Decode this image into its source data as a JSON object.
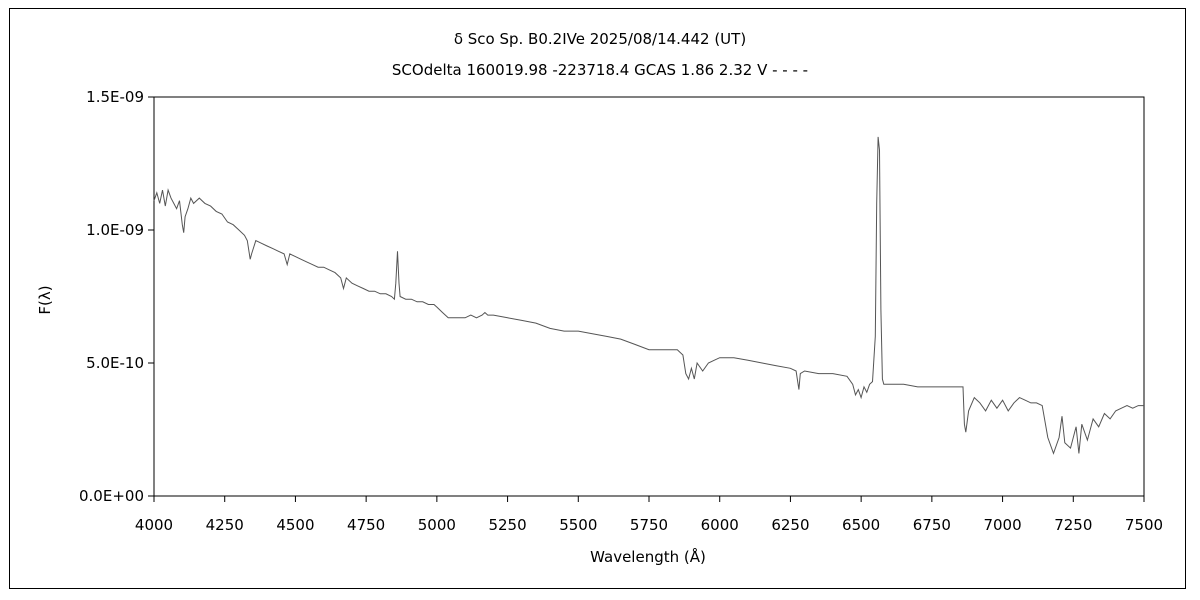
{
  "chart_data": {
    "type": "line",
    "title": "δ Sco    Sp. B0.2IVe    2025/08/14.442 (UT)",
    "subtitle": "SCOdelta 160019.98 -223718.4 GCAS 1.86 2.32 V - - - -",
    "xlabel": "Wavelength (Å)",
    "ylabel": "F(λ)",
    "xlim": [
      4000,
      7500
    ],
    "ylim": [
      0,
      1.5e-09
    ],
    "x_ticks": [
      "4000",
      "4250",
      "4500",
      "4750",
      "5000",
      "5250",
      "5500",
      "5750",
      "6000",
      "6250",
      "6500",
      "6750",
      "7000",
      "7250",
      "7500"
    ],
    "y_ticks": [
      "0.0E+00",
      "5.0E-10",
      "1.0E-09",
      "1.5E-09"
    ],
    "y_tick_values": [
      0,
      5e-10,
      1e-09,
      1.5e-09
    ],
    "x_tick_values": [
      4000,
      4250,
      4500,
      4750,
      5000,
      5250,
      5500,
      5750,
      6000,
      6250,
      6500,
      6750,
      7000,
      7250,
      7500
    ],
    "grid": false,
    "series": [
      {
        "color": "#555555",
        "points": [
          [
            4000,
            1.11e-09
          ],
          [
            4010,
            1.14e-09
          ],
          [
            4020,
            1.1e-09
          ],
          [
            4030,
            1.15e-09
          ],
          [
            4040,
            1.09e-09
          ],
          [
            4050,
            1.15e-09
          ],
          [
            4060,
            1.12e-09
          ],
          [
            4070,
            1.1e-09
          ],
          [
            4080,
            1.08e-09
          ],
          [
            4090,
            1.11e-09
          ],
          [
            4100,
            1.02e-09
          ],
          [
            4105,
            9.9e-10
          ],
          [
            4110,
            1.05e-09
          ],
          [
            4120,
            1.08e-09
          ],
          [
            4130,
            1.12e-09
          ],
          [
            4140,
            1.1e-09
          ],
          [
            4160,
            1.12e-09
          ],
          [
            4180,
            1.1e-09
          ],
          [
            4200,
            1.09e-09
          ],
          [
            4220,
            1.07e-09
          ],
          [
            4240,
            1.06e-09
          ],
          [
            4260,
            1.03e-09
          ],
          [
            4280,
            1.02e-09
          ],
          [
            4300,
            1e-09
          ],
          [
            4320,
            9.8e-10
          ],
          [
            4330,
            9.6e-10
          ],
          [
            4340,
            8.9e-10
          ],
          [
            4345,
            9.1e-10
          ],
          [
            4360,
            9.6e-10
          ],
          [
            4380,
            9.5e-10
          ],
          [
            4400,
            9.4e-10
          ],
          [
            4420,
            9.3e-10
          ],
          [
            4440,
            9.2e-10
          ],
          [
            4460,
            9.1e-10
          ],
          [
            4471,
            8.7e-10
          ],
          [
            4480,
            9.1e-10
          ],
          [
            4500,
            9e-10
          ],
          [
            4520,
            8.9e-10
          ],
          [
            4540,
            8.8e-10
          ],
          [
            4560,
            8.7e-10
          ],
          [
            4580,
            8.6e-10
          ],
          [
            4600,
            8.6e-10
          ],
          [
            4620,
            8.5e-10
          ],
          [
            4640,
            8.4e-10
          ],
          [
            4660,
            8.2e-10
          ],
          [
            4670,
            7.8e-10
          ],
          [
            4680,
            8.2e-10
          ],
          [
            4700,
            8e-10
          ],
          [
            4720,
            7.9e-10
          ],
          [
            4740,
            7.8e-10
          ],
          [
            4760,
            7.7e-10
          ],
          [
            4780,
            7.7e-10
          ],
          [
            4800,
            7.6e-10
          ],
          [
            4820,
            7.6e-10
          ],
          [
            4840,
            7.5e-10
          ],
          [
            4850,
            7.4e-10
          ],
          [
            4855,
            8e-10
          ],
          [
            4861,
            9.2e-10
          ],
          [
            4866,
            8e-10
          ],
          [
            4870,
            7.5e-10
          ],
          [
            4890,
            7.4e-10
          ],
          [
            4910,
            7.4e-10
          ],
          [
            4930,
            7.3e-10
          ],
          [
            4950,
            7.3e-10
          ],
          [
            4970,
            7.2e-10
          ],
          [
            4990,
            7.2e-10
          ],
          [
            5000,
            7.1e-10
          ],
          [
            5020,
            6.9e-10
          ],
          [
            5040,
            6.7e-10
          ],
          [
            5060,
            6.7e-10
          ],
          [
            5080,
            6.7e-10
          ],
          [
            5100,
            6.7e-10
          ],
          [
            5120,
            6.8e-10
          ],
          [
            5140,
            6.7e-10
          ],
          [
            5160,
            6.8e-10
          ],
          [
            5170,
            6.9e-10
          ],
          [
            5180,
            6.8e-10
          ],
          [
            5200,
            6.8e-10
          ],
          [
            5250,
            6.7e-10
          ],
          [
            5300,
            6.6e-10
          ],
          [
            5350,
            6.5e-10
          ],
          [
            5400,
            6.3e-10
          ],
          [
            5450,
            6.2e-10
          ],
          [
            5500,
            6.2e-10
          ],
          [
            5550,
            6.1e-10
          ],
          [
            5600,
            6e-10
          ],
          [
            5650,
            5.9e-10
          ],
          [
            5700,
            5.7e-10
          ],
          [
            5750,
            5.5e-10
          ],
          [
            5800,
            5.5e-10
          ],
          [
            5850,
            5.5e-10
          ],
          [
            5870,
            5.3e-10
          ],
          [
            5880,
            4.6e-10
          ],
          [
            5890,
            4.4e-10
          ],
          [
            5900,
            4.8e-10
          ],
          [
            5910,
            4.4e-10
          ],
          [
            5920,
            5e-10
          ],
          [
            5940,
            4.7e-10
          ],
          [
            5960,
            5e-10
          ],
          [
            5980,
            5.1e-10
          ],
          [
            6000,
            5.2e-10
          ],
          [
            6050,
            5.2e-10
          ],
          [
            6100,
            5.1e-10
          ],
          [
            6150,
            5e-10
          ],
          [
            6200,
            4.9e-10
          ],
          [
            6250,
            4.8e-10
          ],
          [
            6270,
            4.7e-10
          ],
          [
            6280,
            4e-10
          ],
          [
            6285,
            4.6e-10
          ],
          [
            6300,
            4.7e-10
          ],
          [
            6350,
            4.6e-10
          ],
          [
            6400,
            4.6e-10
          ],
          [
            6450,
            4.5e-10
          ],
          [
            6470,
            4.2e-10
          ],
          [
            6480,
            3.8e-10
          ],
          [
            6490,
            4e-10
          ],
          [
            6500,
            3.7e-10
          ],
          [
            6510,
            4.1e-10
          ],
          [
            6520,
            3.9e-10
          ],
          [
            6530,
            4.2e-10
          ],
          [
            6540,
            4.3e-10
          ],
          [
            6550,
            6e-10
          ],
          [
            6555,
            1.1e-09
          ],
          [
            6560,
            1.35e-09
          ],
          [
            6565,
            1.3e-09
          ],
          [
            6570,
            7e-10
          ],
          [
            6575,
            4.4e-10
          ],
          [
            6580,
            4.2e-10
          ],
          [
            6600,
            4.2e-10
          ],
          [
            6650,
            4.2e-10
          ],
          [
            6700,
            4.1e-10
          ],
          [
            6750,
            4.1e-10
          ],
          [
            6800,
            4.1e-10
          ],
          [
            6860,
            4.1e-10
          ],
          [
            6865,
            2.7e-10
          ],
          [
            6870,
            2.4e-10
          ],
          [
            6880,
            3.2e-10
          ],
          [
            6900,
            3.7e-10
          ],
          [
            6920,
            3.5e-10
          ],
          [
            6940,
            3.2e-10
          ],
          [
            6960,
            3.6e-10
          ],
          [
            6980,
            3.3e-10
          ],
          [
            7000,
            3.6e-10
          ],
          [
            7020,
            3.2e-10
          ],
          [
            7040,
            3.5e-10
          ],
          [
            7060,
            3.7e-10
          ],
          [
            7080,
            3.6e-10
          ],
          [
            7100,
            3.5e-10
          ],
          [
            7120,
            3.5e-10
          ],
          [
            7140,
            3.4e-10
          ],
          [
            7160,
            2.2e-10
          ],
          [
            7180,
            1.6e-10
          ],
          [
            7200,
            2.2e-10
          ],
          [
            7210,
            3e-10
          ],
          [
            7220,
            2e-10
          ],
          [
            7240,
            1.8e-10
          ],
          [
            7260,
            2.6e-10
          ],
          [
            7270,
            1.6e-10
          ],
          [
            7280,
            2.7e-10
          ],
          [
            7300,
            2.1e-10
          ],
          [
            7320,
            2.9e-10
          ],
          [
            7340,
            2.6e-10
          ],
          [
            7360,
            3.1e-10
          ],
          [
            7380,
            2.9e-10
          ],
          [
            7400,
            3.2e-10
          ],
          [
            7420,
            3.3e-10
          ],
          [
            7440,
            3.4e-10
          ],
          [
            7460,
            3.3e-10
          ],
          [
            7480,
            3.4e-10
          ],
          [
            7500,
            3.4e-10
          ]
        ]
      }
    ]
  }
}
